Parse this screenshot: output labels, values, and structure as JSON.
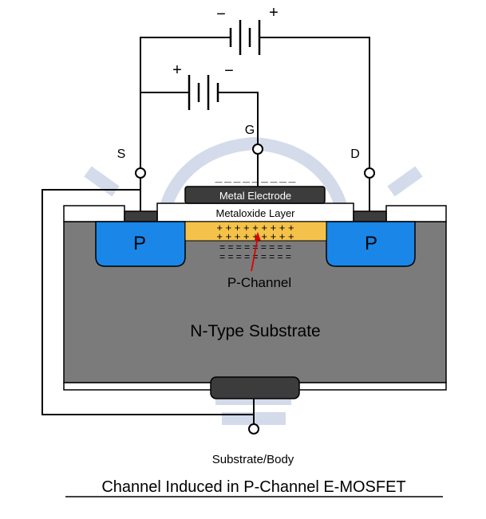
{
  "title": "Channel Induced in P-Channel E-MOSFET",
  "terminals": {
    "source": "S",
    "gate": "G",
    "drain": "D",
    "body": "Substrate/Body"
  },
  "batteries": {
    "drain_source": {
      "negative": "−",
      "positive": "+"
    },
    "gate_source": {
      "positive": "+",
      "negative": "−"
    }
  },
  "layers": {
    "metal_electrode": "Metal Electrode",
    "metaloxide": "Metaloxide Layer",
    "substrate": "N-Type Substrate",
    "channel": "P-Channel"
  },
  "regions": {
    "source_p": "P",
    "drain_p": "P"
  },
  "charges": {
    "gate_negative": "— — — — — — — — —",
    "channel_row1": "+ + + + + + + + +",
    "channel_row2": "+ + + + + + + + +",
    "electron_row1": "= = = = = = = = =",
    "electron_row2": "= = = = = = = = ="
  },
  "colors": {
    "p_region": "#1a86e8",
    "channel": "#f4c24a",
    "substrate": "#7b7b7b",
    "metal": "#3c3c3c",
    "arrow": "#e00000",
    "watermark": "#c9d2e6"
  }
}
